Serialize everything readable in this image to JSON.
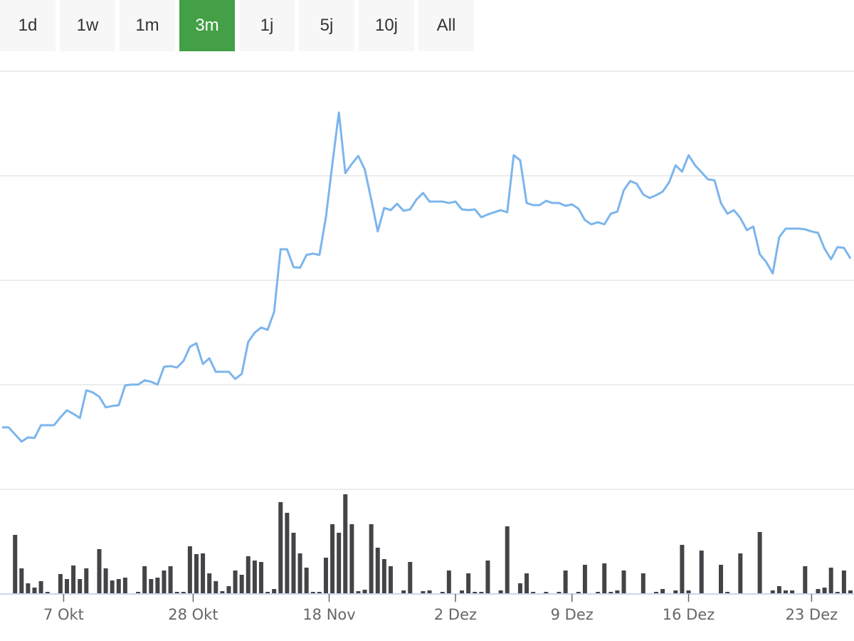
{
  "tabs": {
    "items": [
      "1d",
      "1w",
      "1m",
      "3m",
      "1j",
      "5j",
      "10j",
      "All"
    ],
    "active": 3
  },
  "chart_data": [
    {
      "type": "line",
      "color": "#7cb5ec",
      "grid": true,
      "x": [
        0,
        1,
        2,
        3,
        4,
        5,
        6,
        7,
        8,
        9,
        10,
        11,
        12,
        13,
        14,
        15,
        16,
        17,
        18,
        19,
        20,
        21,
        22,
        23,
        24,
        25,
        26,
        27,
        28,
        29,
        30,
        31,
        32,
        33,
        34,
        35,
        36,
        37,
        38,
        39,
        40,
        41,
        42,
        43,
        44,
        45,
        46,
        47,
        48,
        49,
        50,
        51,
        52,
        53,
        54,
        55,
        56,
        57,
        58,
        59,
        60,
        61,
        62,
        63,
        64,
        65,
        66,
        67,
        68,
        69,
        70,
        71,
        72,
        73,
        74,
        75,
        76,
        77,
        78,
        79,
        80,
        81,
        82,
        83,
        84,
        85,
        86,
        87,
        88,
        89,
        90,
        91,
        92,
        93,
        94,
        95,
        96,
        97,
        98,
        99,
        100,
        101,
        102,
        103,
        104,
        105,
        106,
        107,
        108,
        109,
        110,
        111,
        112,
        113,
        114,
        115,
        116,
        117,
        118,
        119,
        120,
        121,
        122,
        123,
        124,
        125,
        126,
        127,
        128,
        129,
        130,
        131
      ],
      "values": [
        59.3,
        59.3,
        52.5,
        45.7,
        49.7,
        49.1,
        61.3,
        61.3,
        61.3,
        68.8,
        75.6,
        72.2,
        68.1,
        94.7,
        92.7,
        88.6,
        78.4,
        79.7,
        80.4,
        99.5,
        100.2,
        100.2,
        104.3,
        102.9,
        100.2,
        117.2,
        117.9,
        116.5,
        122.7,
        136.3,
        139.7,
        119.9,
        125.4,
        112.4,
        112.4,
        112.4,
        105.6,
        110.4,
        141.0,
        149.9,
        154.7,
        152.6,
        169.7,
        229.6,
        229.6,
        212.6,
        211.9,
        224.2,
        225.5,
        224.2,
        260.3,
        311.4,
        360.5,
        302.5,
        311.4,
        318.9,
        306.0,
        277.3,
        246.7,
        269.2,
        267.1,
        273.2,
        266.4,
        267.8,
        277.3,
        283.5,
        275.3,
        275.3,
        275.3,
        273.9,
        275.3,
        267.8,
        267.1,
        267.8,
        260.3,
        263.0,
        265.0,
        267.1,
        265.0,
        319.6,
        314.8,
        273.9,
        271.9,
        271.9,
        276.0,
        273.9,
        273.9,
        271.2,
        272.6,
        268.5,
        257.6,
        253.5,
        255.5,
        253.5,
        263.7,
        265.7,
        286.2,
        295.0,
        292.3,
        282.1,
        278.7,
        281.4,
        284.8,
        293.7,
        310.0,
        303.9,
        319.6,
        310.0,
        303.3,
        296.5,
        295.7,
        273.9,
        263.7,
        267.1,
        259.6,
        248.0,
        251.4,
        224.9,
        217.4,
        206.5,
        241.2,
        249.4,
        249.4,
        249.4,
        248.7,
        246.7,
        245.3,
        230.3,
        220.1,
        231.7,
        231.0,
        220.8
      ],
      "xlim": [
        0,
        131
      ],
      "ylim": [
        0,
        400
      ],
      "yticks": [
        0,
        100,
        200,
        300,
        400
      ]
    },
    {
      "type": "bar",
      "color": "#434348",
      "x": [
        0,
        1,
        2,
        3,
        4,
        5,
        6,
        7,
        8,
        9,
        10,
        11,
        12,
        13,
        14,
        15,
        16,
        17,
        18,
        19,
        20,
        21,
        22,
        23,
        24,
        25,
        26,
        27,
        28,
        29,
        30,
        31,
        32,
        33,
        34,
        35,
        36,
        37,
        38,
        39,
        40,
        41,
        42,
        43,
        44,
        45,
        46,
        47,
        48,
        49,
        50,
        51,
        52,
        53,
        54,
        55,
        56,
        57,
        58,
        59,
        60,
        61,
        62,
        63,
        64,
        65,
        66,
        67,
        68,
        69,
        70,
        71,
        72,
        73,
        74,
        75,
        76,
        77,
        78,
        79,
        80,
        81,
        82,
        83,
        84,
        85,
        86,
        87,
        88,
        89,
        90,
        91,
        92,
        93,
        94,
        95,
        96,
        97,
        98,
        99,
        100,
        101,
        102,
        103,
        104,
        105,
        106,
        107,
        108,
        109,
        110,
        111,
        112,
        113,
        114,
        115,
        116,
        117,
        118,
        119,
        120,
        121,
        122,
        123,
        124,
        125,
        126,
        127,
        128,
        129,
        130,
        131
      ],
      "values": [
        0,
        0,
        82,
        35,
        14,
        8,
        17,
        2,
        0,
        27,
        20,
        39,
        20,
        35,
        0,
        62,
        35,
        18,
        20,
        22,
        0,
        2,
        38,
        20,
        22,
        32,
        38,
        2,
        2,
        66,
        55,
        56,
        28,
        17,
        3,
        10,
        32,
        26,
        52,
        46,
        44,
        2,
        6,
        128,
        113,
        85,
        56,
        36,
        2,
        2,
        50,
        97,
        85,
        139,
        97,
        3,
        5,
        97,
        64,
        48,
        38,
        0,
        4,
        44,
        0,
        3,
        4,
        0,
        2,
        32,
        0,
        4,
        28,
        2,
        2,
        46,
        0,
        4,
        94,
        0,
        14,
        28,
        2,
        0,
        2,
        0,
        2,
        32,
        0,
        2,
        40,
        0,
        2,
        42,
        2,
        4,
        32,
        0,
        0,
        28,
        0,
        2,
        6,
        0,
        4,
        68,
        4,
        0,
        60,
        0,
        0,
        40,
        2,
        0,
        56,
        0,
        0,
        86,
        0,
        4,
        10,
        4,
        4,
        0,
        38,
        0,
        6,
        8,
        36,
        2,
        32,
        4
      ],
      "xlim": [
        0,
        131
      ],
      "ylim": [
        0,
        140
      ],
      "xticks": [
        {
          "value": 9.5,
          "label": "7 Okt"
        },
        {
          "value": 29.5,
          "label": "28 Okt"
        },
        {
          "value": 50.5,
          "label": "18 Nov"
        },
        {
          "value": 70,
          "label": "2 Dez"
        },
        {
          "value": 88,
          "label": "9 Dez"
        },
        {
          "value": 106,
          "label": "16 Dez"
        },
        {
          "value": 125,
          "label": "23 Dez"
        }
      ]
    }
  ]
}
